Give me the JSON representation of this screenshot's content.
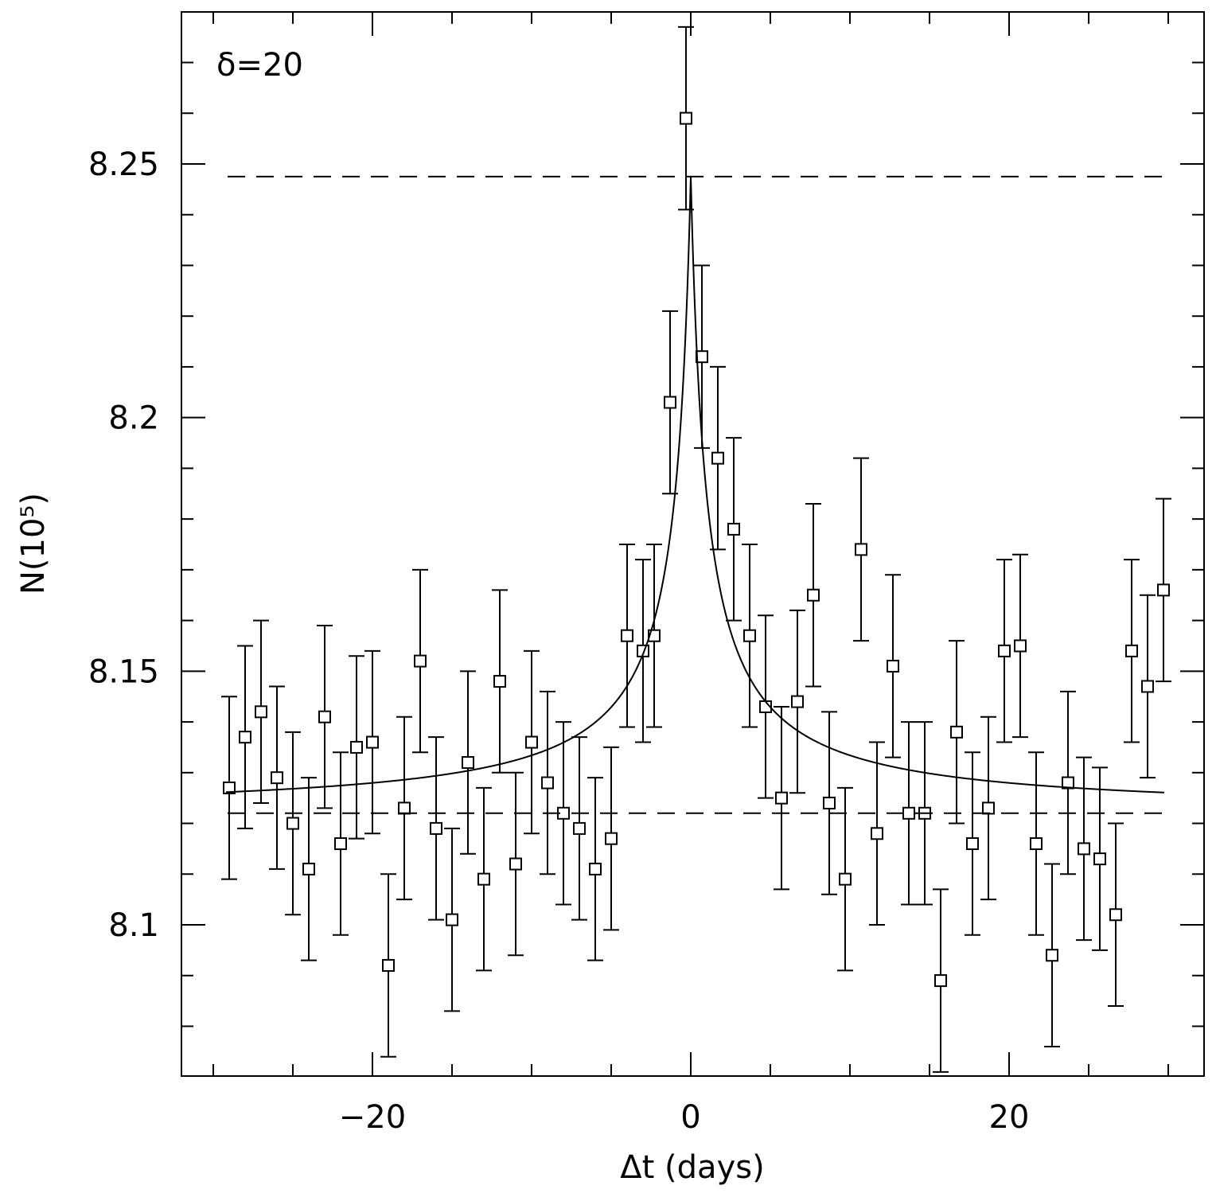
{
  "chart_data": {
    "type": "scatter",
    "annotation": "δ=20",
    "xlabel": "Δt (days)",
    "ylabel": "N(10⁵)",
    "xlim": [
      -32,
      32
    ],
    "ylim": [
      8.07,
      8.28
    ],
    "x_ticks": [
      -20,
      0,
      20
    ],
    "x_tick_labels": [
      "−20",
      "0",
      "20"
    ],
    "y_ticks": [
      8.1,
      8.15,
      8.2,
      8.25
    ],
    "y_tick_labels": [
      "8.1",
      "8.15",
      "8.2",
      "8.25"
    ],
    "grid": false,
    "points": [
      {
        "x": -29,
        "y": 8.127,
        "err": 0.018
      },
      {
        "x": -28,
        "y": 8.137,
        "err": 0.018
      },
      {
        "x": -27,
        "y": 8.142,
        "err": 0.018
      },
      {
        "x": -26,
        "y": 8.129,
        "err": 0.018
      },
      {
        "x": -25,
        "y": 8.12,
        "err": 0.018
      },
      {
        "x": -24,
        "y": 8.111,
        "err": 0.018
      },
      {
        "x": -23,
        "y": 8.141,
        "err": 0.018
      },
      {
        "x": -22,
        "y": 8.116,
        "err": 0.018
      },
      {
        "x": -21,
        "y": 8.135,
        "err": 0.018
      },
      {
        "x": -20,
        "y": 8.136,
        "err": 0.018
      },
      {
        "x": -19,
        "y": 8.092,
        "err": 0.018
      },
      {
        "x": -18,
        "y": 8.123,
        "err": 0.018
      },
      {
        "x": -17,
        "y": 8.152,
        "err": 0.018
      },
      {
        "x": -16,
        "y": 8.119,
        "err": 0.018
      },
      {
        "x": -15,
        "y": 8.101,
        "err": 0.018
      },
      {
        "x": -14,
        "y": 8.132,
        "err": 0.018
      },
      {
        "x": -13,
        "y": 8.109,
        "err": 0.018
      },
      {
        "x": -12,
        "y": 8.148,
        "err": 0.018
      },
      {
        "x": -11,
        "y": 8.112,
        "err": 0.018
      },
      {
        "x": -10,
        "y": 8.136,
        "err": 0.018
      },
      {
        "x": -9,
        "y": 8.128,
        "err": 0.018
      },
      {
        "x": -8,
        "y": 8.122,
        "err": 0.018
      },
      {
        "x": -7,
        "y": 8.119,
        "err": 0.018
      },
      {
        "x": -6,
        "y": 8.111,
        "err": 0.018
      },
      {
        "x": -5,
        "y": 8.117,
        "err": 0.018
      },
      {
        "x": -4,
        "y": 8.157,
        "err": 0.018
      },
      {
        "x": -3,
        "y": 8.154,
        "err": 0.018
      },
      {
        "x": -2.3,
        "y": 8.157,
        "err": 0.018
      },
      {
        "x": -1.3,
        "y": 8.203,
        "err": 0.018
      },
      {
        "x": -0.3,
        "y": 8.259,
        "err": 0.018
      },
      {
        "x": 0.7,
        "y": 8.212,
        "err": 0.018
      },
      {
        "x": 1.7,
        "y": 8.192,
        "err": 0.018
      },
      {
        "x": 2.7,
        "y": 8.178,
        "err": 0.018
      },
      {
        "x": 3.7,
        "y": 8.157,
        "err": 0.018
      },
      {
        "x": 4.7,
        "y": 8.143,
        "err": 0.018
      },
      {
        "x": 5.7,
        "y": 8.125,
        "err": 0.018
      },
      {
        "x": 6.7,
        "y": 8.144,
        "err": 0.018
      },
      {
        "x": 7.7,
        "y": 8.165,
        "err": 0.018
      },
      {
        "x": 8.7,
        "y": 8.124,
        "err": 0.018
      },
      {
        "x": 9.7,
        "y": 8.109,
        "err": 0.018
      },
      {
        "x": 10.7,
        "y": 8.174,
        "err": 0.018
      },
      {
        "x": 11.7,
        "y": 8.118,
        "err": 0.018
      },
      {
        "x": 12.7,
        "y": 8.151,
        "err": 0.018
      },
      {
        "x": 13.7,
        "y": 8.122,
        "err": 0.018
      },
      {
        "x": 14.7,
        "y": 8.122,
        "err": 0.018
      },
      {
        "x": 15.7,
        "y": 8.089,
        "err": 0.018
      },
      {
        "x": 16.7,
        "y": 8.138,
        "err": 0.018
      },
      {
        "x": 17.7,
        "y": 8.116,
        "err": 0.018
      },
      {
        "x": 18.7,
        "y": 8.123,
        "err": 0.018
      },
      {
        "x": 19.7,
        "y": 8.154,
        "err": 0.018
      },
      {
        "x": 20.7,
        "y": 8.155,
        "err": 0.018
      },
      {
        "x": 21.7,
        "y": 8.116,
        "err": 0.018
      },
      {
        "x": 22.7,
        "y": 8.094,
        "err": 0.018
      },
      {
        "x": 23.7,
        "y": 8.128,
        "err": 0.018
      },
      {
        "x": 24.7,
        "y": 8.115,
        "err": 0.018
      },
      {
        "x": 25.7,
        "y": 8.113,
        "err": 0.018
      },
      {
        "x": 26.7,
        "y": 8.102,
        "err": 0.018
      },
      {
        "x": 27.7,
        "y": 8.154,
        "err": 0.018
      },
      {
        "x": 28.7,
        "y": 8.147,
        "err": 0.018
      },
      {
        "x": 29.7,
        "y": 8.166,
        "err": 0.018
      }
    ],
    "fit_curve": {
      "type": "peak",
      "center": 0,
      "baseline": 8.122,
      "peak": 8.2475
    },
    "reference_lines": [
      8.2475,
      8.122
    ]
  }
}
